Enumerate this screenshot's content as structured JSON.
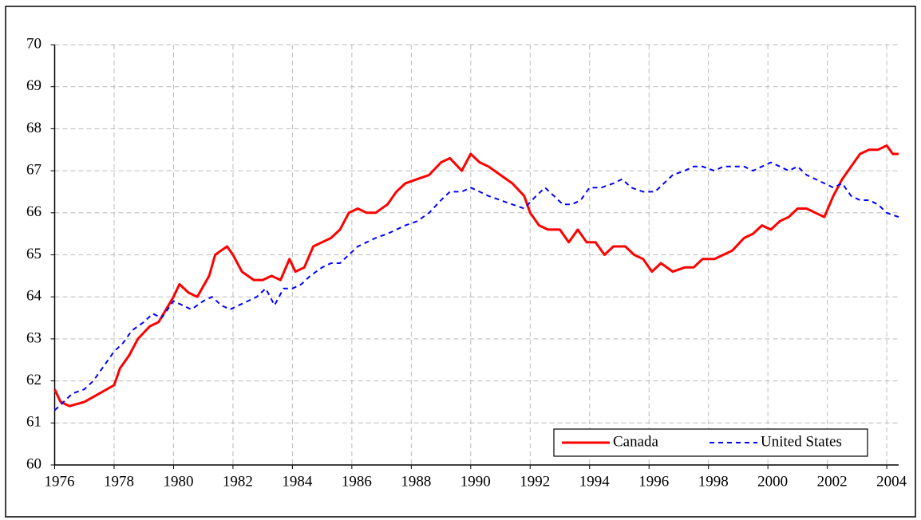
{
  "chart_data": {
    "type": "line",
    "xlim": [
      1976,
      2004.4
    ],
    "xticks": [
      1976,
      1978,
      1980,
      1982,
      1984,
      1986,
      1988,
      1990,
      1992,
      1994,
      1996,
      1998,
      2000,
      2002,
      2004
    ],
    "ylim": [
      60,
      70
    ],
    "yticks": [
      60,
      61,
      62,
      63,
      64,
      65,
      66,
      67,
      68,
      69,
      70
    ],
    "grid": true,
    "legend": "lower right",
    "series": [
      {
        "name": "Canada",
        "color": "#ff0000",
        "dash": false,
        "x": [
          1976.0,
          1976.2,
          1976.5,
          1977.0,
          1977.5,
          1978.0,
          1978.2,
          1978.5,
          1978.8,
          1979.2,
          1979.5,
          1980.0,
          1980.2,
          1980.5,
          1980.8,
          1981.2,
          1981.4,
          1981.6,
          1981.8,
          1982.0,
          1982.3,
          1982.7,
          1983.0,
          1983.3,
          1983.6,
          1983.9,
          1984.1,
          1984.4,
          1984.7,
          1985.0,
          1985.3,
          1985.6,
          1985.9,
          1986.2,
          1986.5,
          1986.8,
          1987.2,
          1987.5,
          1987.8,
          1988.2,
          1988.6,
          1989.0,
          1989.3,
          1989.7,
          1990.0,
          1990.3,
          1990.6,
          1991.0,
          1991.4,
          1991.8,
          1992.0,
          1992.3,
          1992.6,
          1993.0,
          1993.3,
          1993.6,
          1993.9,
          1994.2,
          1994.5,
          1994.8,
          1995.2,
          1995.5,
          1995.8,
          1996.1,
          1996.4,
          1996.8,
          1997.2,
          1997.5,
          1997.8,
          1998.2,
          1998.5,
          1998.8,
          1999.2,
          1999.5,
          1999.8,
          2000.1,
          2000.4,
          2000.7,
          2001.0,
          2001.3,
          2001.6,
          2001.9,
          2002.2,
          2002.5,
          2002.8,
          2003.1,
          2003.4,
          2003.7,
          2004.0,
          2004.2,
          2004.4
        ],
        "values": [
          61.8,
          61.5,
          61.4,
          61.5,
          61.7,
          61.9,
          62.3,
          62.6,
          63.0,
          63.3,
          63.4,
          64.0,
          64.3,
          64.1,
          64.0,
          64.5,
          65.0,
          65.1,
          65.2,
          65.0,
          64.6,
          64.4,
          64.4,
          64.5,
          64.4,
          64.9,
          64.6,
          64.7,
          65.2,
          65.3,
          65.4,
          65.6,
          66.0,
          66.1,
          66.0,
          66.0,
          66.2,
          66.5,
          66.7,
          66.8,
          66.9,
          67.2,
          67.3,
          67.0,
          67.4,
          67.2,
          67.1,
          66.9,
          66.7,
          66.4,
          66.0,
          65.7,
          65.6,
          65.6,
          65.3,
          65.6,
          65.3,
          65.3,
          65.0,
          65.2,
          65.2,
          65.0,
          64.9,
          64.6,
          64.8,
          64.6,
          64.7,
          64.7,
          64.9,
          64.9,
          65.0,
          65.1,
          65.4,
          65.5,
          65.7,
          65.6,
          65.8,
          65.9,
          66.1,
          66.1,
          66.0,
          65.9,
          66.4,
          66.8,
          67.1,
          67.4,
          67.5,
          67.5,
          67.6,
          67.4,
          67.4
        ]
      },
      {
        "name": "United States",
        "color": "#0000ff",
        "dash": true,
        "x": [
          1976.0,
          1976.3,
          1976.6,
          1977.0,
          1977.3,
          1977.6,
          1978.0,
          1978.3,
          1978.6,
          1979.0,
          1979.3,
          1979.6,
          1980.0,
          1980.3,
          1980.6,
          1981.0,
          1981.3,
          1981.6,
          1981.9,
          1982.2,
          1982.5,
          1982.8,
          1983.1,
          1983.4,
          1983.7,
          1984.0,
          1984.3,
          1984.6,
          1985.0,
          1985.3,
          1985.6,
          1985.9,
          1986.2,
          1986.5,
          1986.8,
          1987.2,
          1987.5,
          1987.8,
          1988.2,
          1988.6,
          1989.0,
          1989.3,
          1989.7,
          1990.0,
          1990.3,
          1990.6,
          1991.0,
          1991.4,
          1991.8,
          1992.2,
          1992.5,
          1992.8,
          1993.1,
          1993.4,
          1993.7,
          1994.0,
          1994.4,
          1994.8,
          1995.1,
          1995.4,
          1995.8,
          1996.2,
          1996.5,
          1996.8,
          1997.2,
          1997.5,
          1997.8,
          1998.2,
          1998.5,
          1998.8,
          1999.2,
          1999.5,
          1999.8,
          2000.1,
          2000.4,
          2000.7,
          2001.0,
          2001.3,
          2001.6,
          2001.9,
          2002.2,
          2002.5,
          2002.8,
          2003.1,
          2003.4,
          2003.7,
          2004.0,
          2004.4
        ],
        "values": [
          61.3,
          61.5,
          61.7,
          61.8,
          62.0,
          62.3,
          62.7,
          62.9,
          63.2,
          63.4,
          63.6,
          63.5,
          63.9,
          63.8,
          63.7,
          63.9,
          64.0,
          63.8,
          63.7,
          63.8,
          63.9,
          64.0,
          64.2,
          63.8,
          64.2,
          64.2,
          64.3,
          64.5,
          64.7,
          64.8,
          64.8,
          65.0,
          65.2,
          65.3,
          65.4,
          65.5,
          65.6,
          65.7,
          65.8,
          66.0,
          66.3,
          66.5,
          66.5,
          66.6,
          66.5,
          66.4,
          66.3,
          66.2,
          66.1,
          66.4,
          66.6,
          66.4,
          66.2,
          66.2,
          66.3,
          66.6,
          66.6,
          66.7,
          66.8,
          66.6,
          66.5,
          66.5,
          66.7,
          66.9,
          67.0,
          67.1,
          67.1,
          67.0,
          67.1,
          67.1,
          67.1,
          67.0,
          67.1,
          67.2,
          67.1,
          67.0,
          67.1,
          66.9,
          66.8,
          66.7,
          66.6,
          66.7,
          66.4,
          66.3,
          66.3,
          66.2,
          66.0,
          65.9
        ]
      }
    ]
  }
}
